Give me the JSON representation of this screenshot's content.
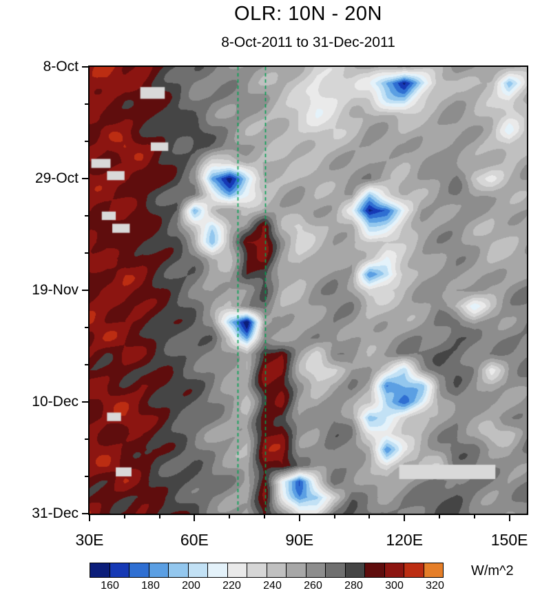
{
  "title": "OLR: 10N - 20N",
  "subtitle": "8-Oct-2011 to 31-Dec-2011",
  "colorbar": {
    "unit_label": "W/m^2",
    "levels": [
      150,
      160,
      170,
      180,
      190,
      200,
      210,
      220,
      230,
      240,
      250,
      260,
      270,
      280,
      290,
      300,
      310,
      320,
      330
    ],
    "tick_labels": [
      "160",
      "180",
      "200",
      "220",
      "240",
      "260",
      "280",
      "300",
      "320"
    ],
    "colors": [
      "#0c1e7a",
      "#1639b5",
      "#2f6fd2",
      "#5b9fe3",
      "#93c7ee",
      "#c2e1f5",
      "#e4f2fa",
      "#eaeaea",
      "#d6d6d6",
      "#c0c0c0",
      "#a7a7a7",
      "#8d8d8d",
      "#6f6f6f",
      "#454545",
      "#5f0d0d",
      "#8c1511",
      "#bc2d12",
      "#e57e28"
    ]
  },
  "axes": {
    "x": {
      "tick_labels": [
        "30E",
        "60E",
        "90E",
        "120E",
        "150E"
      ],
      "tick_lons": [
        30,
        60,
        90,
        120,
        150
      ],
      "minor_step": 10,
      "range": [
        30,
        155
      ]
    },
    "y": {
      "tick_labels": [
        "8-Oct",
        "29-Oct",
        "19-Nov",
        "10-Dec",
        "31-Dec"
      ],
      "tick_days": [
        0,
        21,
        42,
        63,
        84
      ],
      "minor_step": 7,
      "range": [
        0,
        84
      ]
    }
  },
  "chart_data": {
    "type": "heatmap",
    "title": "OLR: 10N - 20N",
    "subtitle": "8-Oct-2011 to 31-Dec-2011",
    "unit": "W/m^2",
    "x_lons": [
      30,
      35,
      40,
      45,
      50,
      55,
      60,
      65,
      70,
      75,
      80,
      85,
      90,
      95,
      100,
      105,
      110,
      115,
      120,
      125,
      130,
      135,
      140,
      145,
      150,
      155
    ],
    "y_days": [
      0,
      3,
      6,
      9,
      12,
      15,
      18,
      21,
      24,
      27,
      30,
      33,
      36,
      39,
      42,
      45,
      48,
      51,
      54,
      57,
      60,
      63,
      66,
      69,
      72,
      75,
      78,
      81,
      84
    ],
    "values": [
      [
        302,
        308,
        298,
        306,
        296,
        288,
        278,
        270,
        266,
        262,
        258,
        254,
        242,
        232,
        238,
        248,
        256,
        252,
        246,
        250,
        255,
        260,
        256,
        250,
        246,
        252
      ],
      [
        306,
        312,
        301,
        298,
        292,
        283,
        272,
        266,
        262,
        258,
        252,
        248,
        238,
        228,
        231,
        241,
        231,
        186,
        157,
        202,
        241,
        252,
        248,
        238,
        190,
        236
      ],
      [
        310,
        305,
        296,
        301,
        291,
        285,
        275,
        268,
        264,
        260,
        255,
        250,
        242,
        222,
        232,
        242,
        238,
        211,
        196,
        226,
        246,
        255,
        252,
        245,
        226,
        248
      ],
      [
        301,
        296,
        306,
        298,
        288,
        280,
        272,
        265,
        260,
        256,
        252,
        246,
        238,
        230,
        236,
        246,
        252,
        248,
        241,
        248,
        252,
        258,
        255,
        250,
        242,
        252
      ],
      [
        296,
        308,
        300,
        293,
        286,
        278,
        283,
        271,
        265,
        258,
        254,
        250,
        244,
        238,
        242,
        250,
        256,
        252,
        248,
        254,
        258,
        262,
        258,
        252,
        221,
        246
      ],
      [
        306,
        298,
        311,
        296,
        291,
        284,
        278,
        272,
        268,
        262,
        258,
        254,
        248,
        244,
        248,
        254,
        260,
        256,
        252,
        258,
        262,
        266,
        260,
        248,
        238,
        250
      ],
      [
        298,
        306,
        296,
        301,
        288,
        282,
        276,
        241,
        231,
        251,
        256,
        252,
        250,
        246,
        250,
        256,
        262,
        258,
        254,
        260,
        264,
        268,
        262,
        255,
        246,
        252
      ],
      [
        302,
        296,
        306,
        298,
        292,
        285,
        270,
        186,
        162,
        206,
        241,
        248,
        252,
        250,
        254,
        258,
        264,
        260,
        256,
        262,
        266,
        270,
        238,
        231,
        248,
        254
      ],
      [
        296,
        301,
        298,
        293,
        288,
        280,
        265,
        231,
        191,
        216,
        246,
        250,
        254,
        252,
        256,
        260,
        201,
        231,
        252,
        258,
        262,
        266,
        258,
        250,
        252,
        256
      ],
      [
        306,
        298,
        296,
        301,
        290,
        282,
        196,
        241,
        252,
        250,
        252,
        254,
        256,
        254,
        258,
        231,
        158,
        171,
        221,
        255,
        260,
        264,
        260,
        252,
        254,
        258
      ],
      [
        298,
        296,
        306,
        296,
        288,
        278,
        241,
        201,
        248,
        252,
        301,
        256,
        236,
        250,
        256,
        252,
        206,
        216,
        236,
        252,
        258,
        262,
        256,
        250,
        252,
        256
      ],
      [
        301,
        308,
        298,
        293,
        285,
        276,
        251,
        196,
        246,
        298,
        306,
        260,
        241,
        252,
        258,
        254,
        241,
        236,
        246,
        255,
        260,
        264,
        258,
        252,
        254,
        258
      ],
      [
        306,
        298,
        296,
        301,
        290,
        280,
        270,
        241,
        250,
        296,
        301,
        258,
        246,
        254,
        260,
        256,
        236,
        216,
        241,
        256,
        262,
        266,
        260,
        254,
        256,
        260
      ],
      [
        298,
        296,
        306,
        296,
        288,
        278,
        272,
        255,
        252,
        291,
        296,
        256,
        248,
        256,
        262,
        258,
        183,
        196,
        236,
        258,
        264,
        268,
        262,
        256,
        258,
        262
      ],
      [
        302,
        308,
        298,
        293,
        286,
        282,
        275,
        260,
        255,
        265,
        286,
        254,
        250,
        258,
        264,
        260,
        231,
        241,
        252,
        260,
        266,
        270,
        264,
        258,
        260,
        264
      ],
      [
        296,
        301,
        306,
        298,
        290,
        284,
        278,
        265,
        258,
        262,
        271,
        252,
        252,
        260,
        266,
        262,
        246,
        250,
        256,
        262,
        268,
        241,
        216,
        246,
        262,
        266
      ],
      [
        306,
        298,
        296,
        301,
        292,
        286,
        280,
        270,
        196,
        153,
        255,
        250,
        254,
        262,
        268,
        264,
        252,
        256,
        260,
        264,
        270,
        274,
        250,
        258,
        264,
        268
      ],
      [
        298,
        306,
        301,
        296,
        288,
        284,
        278,
        272,
        241,
        186,
        260,
        252,
        256,
        264,
        270,
        266,
        256,
        260,
        264,
        268,
        272,
        276,
        268,
        262,
        266,
        270
      ],
      [
        302,
        296,
        306,
        298,
        290,
        282,
        276,
        268,
        255,
        241,
        296,
        301,
        258,
        236,
        266,
        268,
        260,
        262,
        266,
        270,
        274,
        278,
        270,
        264,
        268,
        272
      ],
      [
        296,
        301,
        298,
        293,
        286,
        280,
        274,
        266,
        258,
        250,
        298,
        306,
        260,
        231,
        236,
        262,
        258,
        241,
        206,
        250,
        272,
        276,
        268,
        231,
        266,
        270
      ],
      [
        306,
        298,
        296,
        301,
        290,
        284,
        278,
        270,
        262,
        255,
        301,
        298,
        262,
        250,
        262,
        266,
        250,
        176,
        186,
        196,
        260,
        274,
        266,
        260,
        264,
        268
      ],
      [
        298,
        306,
        301,
        296,
        288,
        282,
        276,
        268,
        260,
        252,
        296,
        302,
        258,
        254,
        266,
        260,
        241,
        186,
        171,
        211,
        255,
        272,
        264,
        258,
        262,
        266
      ],
      [
        302,
        296,
        306,
        298,
        292,
        286,
        280,
        272,
        264,
        256,
        298,
        296,
        260,
        258,
        268,
        255,
        191,
        216,
        231,
        246,
        262,
        270,
        262,
        256,
        260,
        264
      ],
      [
        296,
        301,
        298,
        293,
        286,
        280,
        274,
        266,
        258,
        250,
        301,
        298,
        262,
        260,
        270,
        266,
        236,
        226,
        246,
        255,
        264,
        272,
        264,
        238,
        241,
        262
      ],
      [
        306,
        298,
        296,
        301,
        290,
        284,
        278,
        270,
        262,
        254,
        298,
        302,
        264,
        262,
        272,
        268,
        246,
        183,
        236,
        252,
        266,
        274,
        266,
        260,
        258,
        266
      ],
      [
        298,
        306,
        301,
        296,
        288,
        282,
        276,
        268,
        260,
        252,
        296,
        298,
        266,
        264,
        274,
        270,
        258,
        231,
        248,
        256,
        241,
        268,
        268,
        262,
        260,
        268
      ],
      [
        302,
        296,
        306,
        298,
        292,
        286,
        280,
        272,
        264,
        256,
        301,
        216,
        172,
        231,
        276,
        272,
        262,
        250,
        256,
        262,
        268,
        276,
        270,
        264,
        262,
        270
      ],
      [
        296,
        301,
        298,
        293,
        286,
        280,
        274,
        266,
        258,
        250,
        298,
        236,
        186,
        196,
        241,
        274,
        268,
        262,
        266,
        270,
        274,
        278,
        272,
        266,
        264,
        272
      ],
      [
        306,
        298,
        296,
        301,
        290,
        284,
        278,
        270,
        262,
        254,
        296,
        260,
        231,
        241,
        272,
        276,
        270,
        264,
        268,
        272,
        276,
        280,
        274,
        268,
        266,
        274
      ]
    ],
    "reference_lines": {
      "color": "#00a152",
      "style": "dashed",
      "lons": [
        72.3,
        80.2
      ]
    },
    "missing_color": "#d9d9d9",
    "missing_rects": [
      {
        "lon": [
          44.5,
          51.5
        ],
        "day": [
          3.8,
          6.0
        ]
      },
      {
        "lon": [
          47.5,
          52.5
        ],
        "day": [
          14.2,
          15.8
        ]
      },
      {
        "lon": [
          30.5,
          36.0
        ],
        "day": [
          17.3,
          19.0
        ]
      },
      {
        "lon": [
          35.0,
          40.0
        ],
        "day": [
          19.6,
          21.3
        ]
      },
      {
        "lon": [
          33.5,
          37.5
        ],
        "day": [
          27.2,
          28.8
        ]
      },
      {
        "lon": [
          36.5,
          41.5
        ],
        "day": [
          29.5,
          31.2
        ]
      },
      {
        "lon": [
          35.0,
          39.0
        ],
        "day": [
          65.0,
          66.6
        ]
      },
      {
        "lon": [
          37.5,
          42.0
        ],
        "day": [
          75.3,
          77.0
        ]
      },
      {
        "lon": [
          118.5,
          146.0
        ],
        "day": [
          74.8,
          77.5
        ]
      }
    ]
  }
}
